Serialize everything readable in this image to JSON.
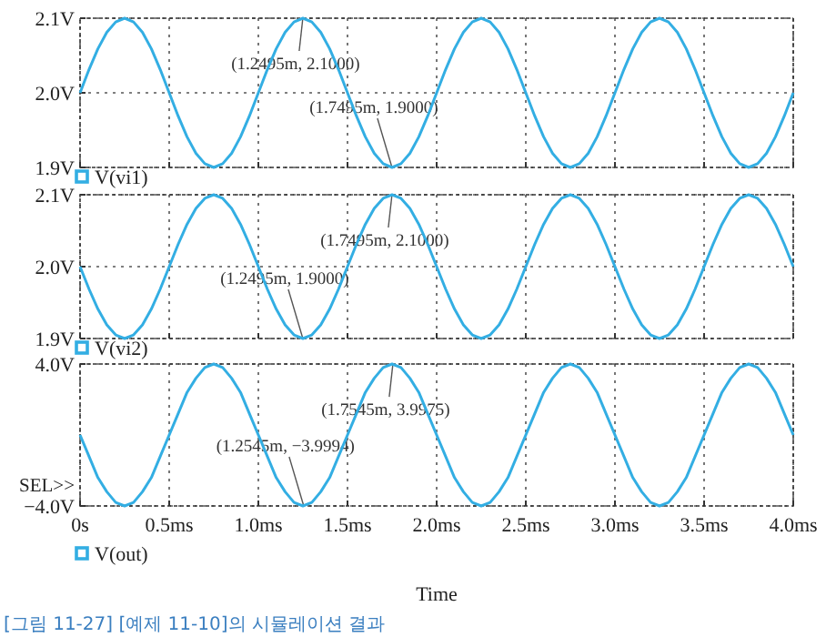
{
  "chart_data": [
    {
      "type": "line",
      "x": [
        0,
        0.05,
        0.1,
        0.15,
        0.2,
        0.25,
        0.3,
        0.35,
        0.4,
        0.45,
        0.5,
        0.55,
        0.6,
        0.65,
        0.7,
        0.75,
        0.8,
        0.85,
        0.9,
        0.95,
        1,
        1.05,
        1.1,
        1.15,
        1.2,
        1.25,
        1.3,
        1.35,
        1.4,
        1.45,
        1.5,
        1.55,
        1.6,
        1.65,
        1.7,
        1.75,
        1.8,
        1.85,
        1.9,
        1.95,
        2,
        2.05,
        2.1,
        2.15,
        2.2,
        2.25,
        2.3,
        2.35,
        2.4,
        2.45,
        2.5,
        2.55,
        2.6,
        2.65,
        2.7,
        2.75,
        2.8,
        2.85,
        2.9,
        2.95,
        3,
        3.05,
        3.1,
        3.15,
        3.2,
        3.25,
        3.3,
        3.35,
        3.4,
        3.45,
        3.5,
        3.55,
        3.6,
        3.65,
        3.7,
        3.75,
        3.8,
        3.85,
        3.9,
        3.95,
        4
      ],
      "series": [
        {
          "name": "V(vi1)",
          "color": "#33aee3",
          "values": [
            2.0,
            2.031,
            2.059,
            2.081,
            2.095,
            2.1,
            2.095,
            2.081,
            2.059,
            2.031,
            2.0,
            1.969,
            1.941,
            1.919,
            1.905,
            1.9,
            1.905,
            1.919,
            1.941,
            1.969,
            2.0,
            2.031,
            2.059,
            2.081,
            2.095,
            2.1,
            2.095,
            2.081,
            2.059,
            2.031,
            2.0,
            1.969,
            1.941,
            1.919,
            1.905,
            1.9,
            1.905,
            1.919,
            1.941,
            1.969,
            2.0,
            2.031,
            2.059,
            2.081,
            2.095,
            2.1,
            2.095,
            2.081,
            2.059,
            2.031,
            2.0,
            1.969,
            1.941,
            1.919,
            1.905,
            1.9,
            1.905,
            1.919,
            1.941,
            1.969,
            2.0,
            2.031,
            2.059,
            2.081,
            2.095,
            2.1,
            2.095,
            2.081,
            2.059,
            2.031,
            2.0,
            1.969,
            1.941,
            1.919,
            1.905,
            1.9,
            1.905,
            1.919,
            1.941,
            1.969,
            2.0
          ]
        }
      ],
      "xlim": [
        0,
        4
      ],
      "ylim": [
        1.9,
        2.1
      ],
      "xticks": [
        0,
        0.5,
        1,
        1.5,
        2,
        2.5,
        3,
        3.5,
        4
      ],
      "yticks": [
        {
          "value": 1.9,
          "label": "1.9V"
        },
        {
          "value": 2.0,
          "label": "2.0V"
        },
        {
          "value": 2.1,
          "label": "2.1V"
        }
      ],
      "tick_labels": "y",
      "grid": true,
      "legend": "bottom left",
      "annotations": [
        {
          "text": "(1.2495m, 2.1000)",
          "x": 1.2495,
          "y": 2.1
        },
        {
          "text": "(1.7495m, 1.9000)",
          "x": 1.7495,
          "y": 1.9
        }
      ]
    },
    {
      "type": "line",
      "x": [
        0,
        0.05,
        0.1,
        0.15,
        0.2,
        0.25,
        0.3,
        0.35,
        0.4,
        0.45,
        0.5,
        0.55,
        0.6,
        0.65,
        0.7,
        0.75,
        0.8,
        0.85,
        0.9,
        0.95,
        1,
        1.05,
        1.1,
        1.15,
        1.2,
        1.25,
        1.3,
        1.35,
        1.4,
        1.45,
        1.5,
        1.55,
        1.6,
        1.65,
        1.7,
        1.75,
        1.8,
        1.85,
        1.9,
        1.95,
        2,
        2.05,
        2.1,
        2.15,
        2.2,
        2.25,
        2.3,
        2.35,
        2.4,
        2.45,
        2.5,
        2.55,
        2.6,
        2.65,
        2.7,
        2.75,
        2.8,
        2.85,
        2.9,
        2.95,
        3,
        3.05,
        3.1,
        3.15,
        3.2,
        3.25,
        3.3,
        3.35,
        3.4,
        3.45,
        3.5,
        3.55,
        3.6,
        3.65,
        3.7,
        3.75,
        3.8,
        3.85,
        3.9,
        3.95,
        4
      ],
      "series": [
        {
          "name": "V(vi2)",
          "color": "#33aee3",
          "values": [
            2.0,
            1.969,
            1.941,
            1.919,
            1.905,
            1.9,
            1.905,
            1.919,
            1.941,
            1.969,
            2.0,
            2.031,
            2.059,
            2.081,
            2.095,
            2.1,
            2.095,
            2.081,
            2.059,
            2.031,
            2.0,
            1.969,
            1.941,
            1.919,
            1.905,
            1.9,
            1.905,
            1.919,
            1.941,
            1.969,
            2.0,
            2.031,
            2.059,
            2.081,
            2.095,
            2.1,
            2.095,
            2.081,
            2.059,
            2.031,
            2.0,
            1.969,
            1.941,
            1.919,
            1.905,
            1.9,
            1.905,
            1.919,
            1.941,
            1.969,
            2.0,
            2.031,
            2.059,
            2.081,
            2.095,
            2.1,
            2.095,
            2.081,
            2.059,
            2.031,
            2.0,
            1.969,
            1.941,
            1.919,
            1.905,
            1.9,
            1.905,
            1.919,
            1.941,
            1.969,
            2.0,
            2.031,
            2.059,
            2.081,
            2.095,
            2.1,
            2.095,
            2.081,
            2.059,
            2.031,
            2.0
          ]
        }
      ],
      "xlim": [
        0,
        4
      ],
      "ylim": [
        1.9,
        2.1
      ],
      "xticks": [
        0,
        0.5,
        1,
        1.5,
        2,
        2.5,
        3,
        3.5,
        4
      ],
      "yticks": [
        {
          "value": 1.9,
          "label": "1.9V"
        },
        {
          "value": 2.0,
          "label": "2.0V"
        },
        {
          "value": 2.1,
          "label": "2.1V"
        }
      ],
      "tick_labels": "y",
      "grid": true,
      "legend": "bottom left",
      "annotations": [
        {
          "text": "(1.7495m, 2.1000)",
          "x": 1.7495,
          "y": 2.1
        },
        {
          "text": "(1.2495m, 1.9000)",
          "x": 1.2495,
          "y": 1.9
        }
      ]
    },
    {
      "type": "line",
      "x": [
        0,
        0.05,
        0.1,
        0.15,
        0.2,
        0.25,
        0.3,
        0.35,
        0.4,
        0.45,
        0.5,
        0.55,
        0.6,
        0.65,
        0.7,
        0.75,
        0.8,
        0.85,
        0.9,
        0.95,
        1,
        1.05,
        1.1,
        1.15,
        1.2,
        1.25,
        1.3,
        1.35,
        1.4,
        1.45,
        1.5,
        1.55,
        1.6,
        1.65,
        1.7,
        1.75,
        1.8,
        1.85,
        1.9,
        1.95,
        2,
        2.05,
        2.1,
        2.15,
        2.2,
        2.25,
        2.3,
        2.35,
        2.4,
        2.45,
        2.5,
        2.55,
        2.6,
        2.65,
        2.7,
        2.75,
        2.8,
        2.85,
        2.9,
        2.95,
        3,
        3.05,
        3.1,
        3.15,
        3.2,
        3.25,
        3.3,
        3.35,
        3.4,
        3.45,
        3.5,
        3.55,
        3.6,
        3.65,
        3.7,
        3.75,
        3.8,
        3.85,
        3.9,
        3.95,
        4
      ],
      "series": [
        {
          "name": "V(out)",
          "color": "#33aee3",
          "values": [
            0,
            -1.2,
            -2.4,
            -3.2,
            -3.8,
            -4,
            -3.8,
            -3.2,
            -2.4,
            -1.2,
            0,
            1.2,
            2.4,
            3.2,
            3.8,
            4,
            3.8,
            3.2,
            2.4,
            1.2,
            0,
            -1.2,
            -2.4,
            -3.2,
            -3.8,
            -4,
            -3.8,
            -3.2,
            -2.4,
            -1.2,
            0,
            1.2,
            2.4,
            3.2,
            3.8,
            4,
            3.8,
            3.2,
            2.4,
            1.2,
            0,
            -1.2,
            -2.4,
            -3.2,
            -3.8,
            -4,
            -3.8,
            -3.2,
            -2.4,
            -1.2,
            0,
            1.2,
            2.4,
            3.2,
            3.8,
            4,
            3.8,
            3.2,
            2.4,
            1.2,
            0,
            -1.2,
            -2.4,
            -3.2,
            -3.8,
            -4,
            -3.8,
            -3.2,
            -2.4,
            -1.2,
            0,
            1.2,
            2.4,
            3.2,
            3.8,
            4,
            3.8,
            3.2,
            2.4,
            1.2,
            0
          ]
        }
      ],
      "xlim": [
        0,
        4
      ],
      "ylim": [
        -4,
        4
      ],
      "xlabel": "Time",
      "xticks": [
        {
          "value": 0,
          "label": "0s"
        },
        {
          "value": 0.5,
          "label": "0.5ms"
        },
        {
          "value": 1,
          "label": "1.0ms"
        },
        {
          "value": 1.5,
          "label": "1.5ms"
        },
        {
          "value": 2,
          "label": "2.0ms"
        },
        {
          "value": 2.5,
          "label": "2.5ms"
        },
        {
          "value": 3,
          "label": "3.0ms"
        },
        {
          "value": 3.5,
          "label": "3.5ms"
        },
        {
          "value": 4,
          "label": "4.0ms"
        }
      ],
      "yticks": [
        {
          "value": -4,
          "label": "−4.0V"
        },
        {
          "value": 4,
          "label": "4.0V"
        }
      ],
      "grid": true,
      "legend": "bottom left",
      "annotations": [
        {
          "text": "(1.7545m, 3.9975)",
          "x": 1.7545,
          "y": 3.9975
        },
        {
          "text": "(1.2545m, −3.9994)",
          "x": 1.2545,
          "y": -3.9994
        },
        "SEL>>",
        "[그림 11-27] [예제 11-10]의 시뮬레이션 결과"
      ]
    }
  ]
}
